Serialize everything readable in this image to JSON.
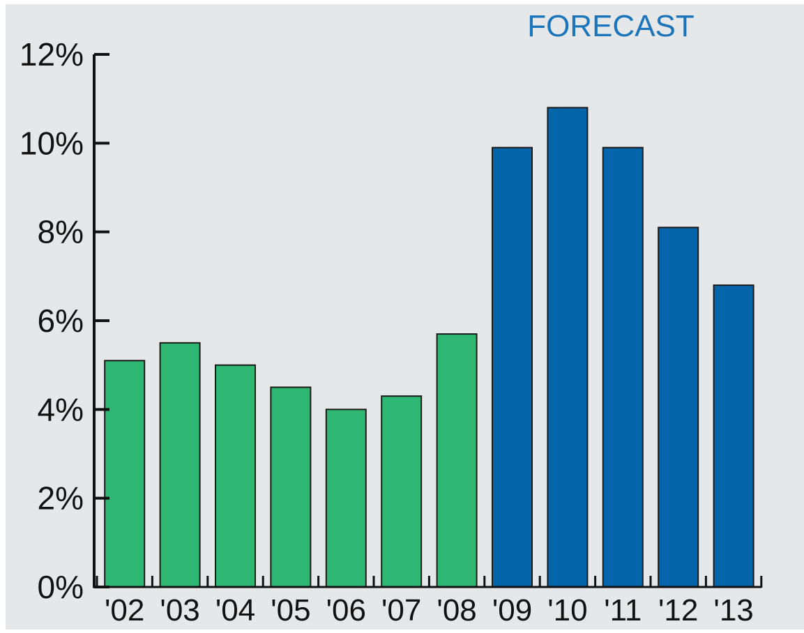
{
  "chart_data": {
    "type": "bar",
    "annotation": "FORECAST",
    "categories": [
      "'02",
      "'03",
      "'04",
      "'05",
      "'06",
      "'07",
      "'08",
      "'09",
      "'10",
      "'11",
      "'12",
      "'13"
    ],
    "values": [
      5.1,
      5.5,
      5.0,
      4.5,
      4.0,
      4.3,
      5.7,
      9.9,
      10.8,
      9.9,
      8.1,
      6.8
    ],
    "forecast": [
      false,
      false,
      false,
      false,
      false,
      false,
      false,
      true,
      true,
      true,
      true,
      true
    ],
    "ylim": [
      0,
      12
    ],
    "yticks": [
      0,
      2,
      4,
      6,
      8,
      10,
      12
    ],
    "ytick_labels": [
      "0%",
      "2%",
      "4%",
      "6%",
      "8%",
      "10%",
      "12%"
    ],
    "grid": false,
    "colors": {
      "background": "#e6e7e8",
      "actual": "#2db772",
      "forecast": "#0565ab",
      "annotation": "#1b75bc",
      "axis": "#111111"
    }
  }
}
